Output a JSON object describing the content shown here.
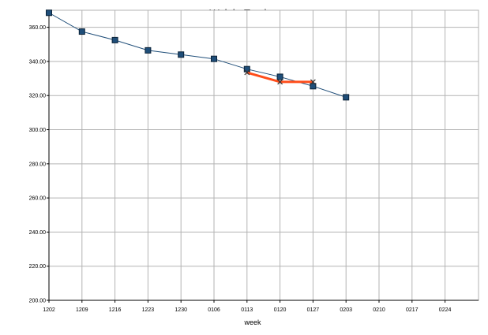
{
  "chart_data": {
    "type": "line",
    "title": "Weight Tracker",
    "xlabel": "week",
    "ylabel": "",
    "ylim": [
      200,
      370
    ],
    "yticks": [
      200,
      220,
      240,
      260,
      280,
      300,
      320,
      340,
      360
    ],
    "ytick_labels": [
      "200.00",
      "220.00",
      "240.00",
      "260.00",
      "280.00",
      "300.00",
      "320.00",
      "340.00",
      "360.00"
    ],
    "categories": [
      "1202",
      "1209",
      "1216",
      "1223",
      "1230",
      "0106",
      "0113",
      "0120",
      "0127",
      "0203",
      "0210",
      "0217",
      "0224"
    ],
    "grid": true,
    "legend": "none",
    "series": [
      {
        "color": "#1f4e79",
        "marker": "square",
        "values": [
          368.5,
          357.5,
          352.5,
          346.5,
          344.0,
          341.5,
          335.5,
          331.0,
          325.5,
          319.0,
          null,
          null,
          null
        ]
      },
      {
        "color": "#ff4d1a",
        "marker": "x",
        "values": [
          null,
          null,
          null,
          null,
          null,
          null,
          333.5,
          328.0,
          328.0,
          null,
          null,
          null,
          null
        ]
      }
    ],
    "colors": {
      "grid": "#b3b3b3",
      "axis": "#000000",
      "plot_background": "#ffffff"
    }
  }
}
